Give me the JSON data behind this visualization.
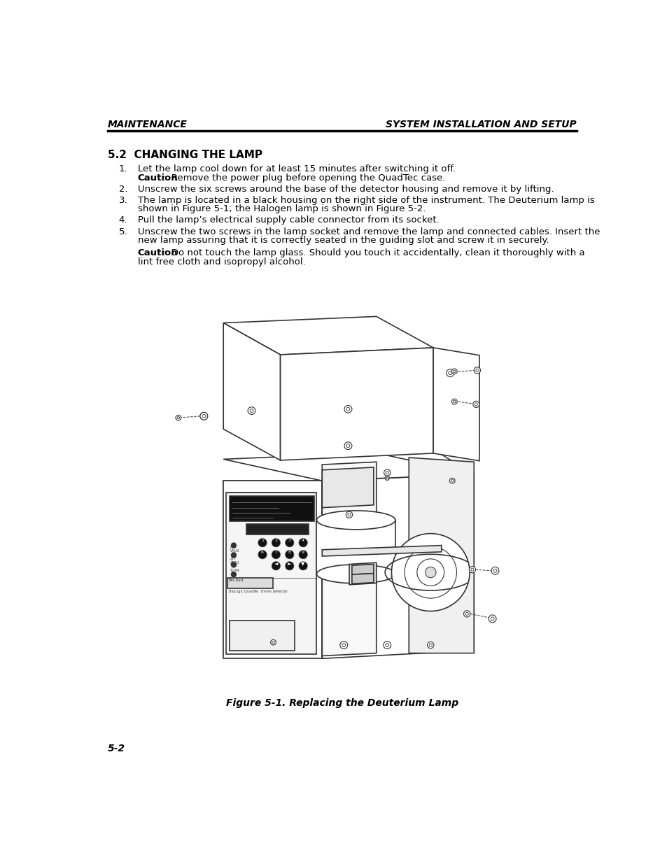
{
  "header_left": "MAINTENANCE",
  "header_right": "SYSTEM INSTALLATION AND SETUP",
  "section_title": "5.2  CHANGING THE LAMP",
  "item1_line1": "Let the lamp cool down for at least 15 minutes after switching it off.",
  "item1_caution_bold": "Caution",
  "item1_caution_rest": ":  Remove the power plug before opening the QuadTec case.",
  "item2": "Unscrew the six screws around the base of the detector housing and remove it by lifting.",
  "item3_line1": "The lamp is located in a black housing on the right side of the instrument. The Deuterium lamp is",
  "item3_line2": "shown in Figure 5-1; the Halogen lamp is shown in Figure 5-2.",
  "item4": "Pull the lamp’s electrical supply cable connector from its socket.",
  "item5_line1": "Unscrew the two screws in the lamp socket and remove the lamp and connected cables. Insert the",
  "item5_line2": "new lamp assuring that it is correctly seated in the guiding slot and screw it in securely.",
  "caution2_bold": "Caution",
  "caution2_rest": ":  Do not touch the lamp glass. Should you touch it accidentally, clean it thoroughly with a",
  "caution2_line2": "lint free cloth and isopropyl alcohol.",
  "figure_caption": "Figure 5-1. Replacing the Deuterium Lamp",
  "page_number": "5-2",
  "bg_color": "#ffffff",
  "text_color": "#000000",
  "edge_color": "#333333",
  "header_font_size": 10,
  "body_font_size": 9.5,
  "section_font_size": 11
}
